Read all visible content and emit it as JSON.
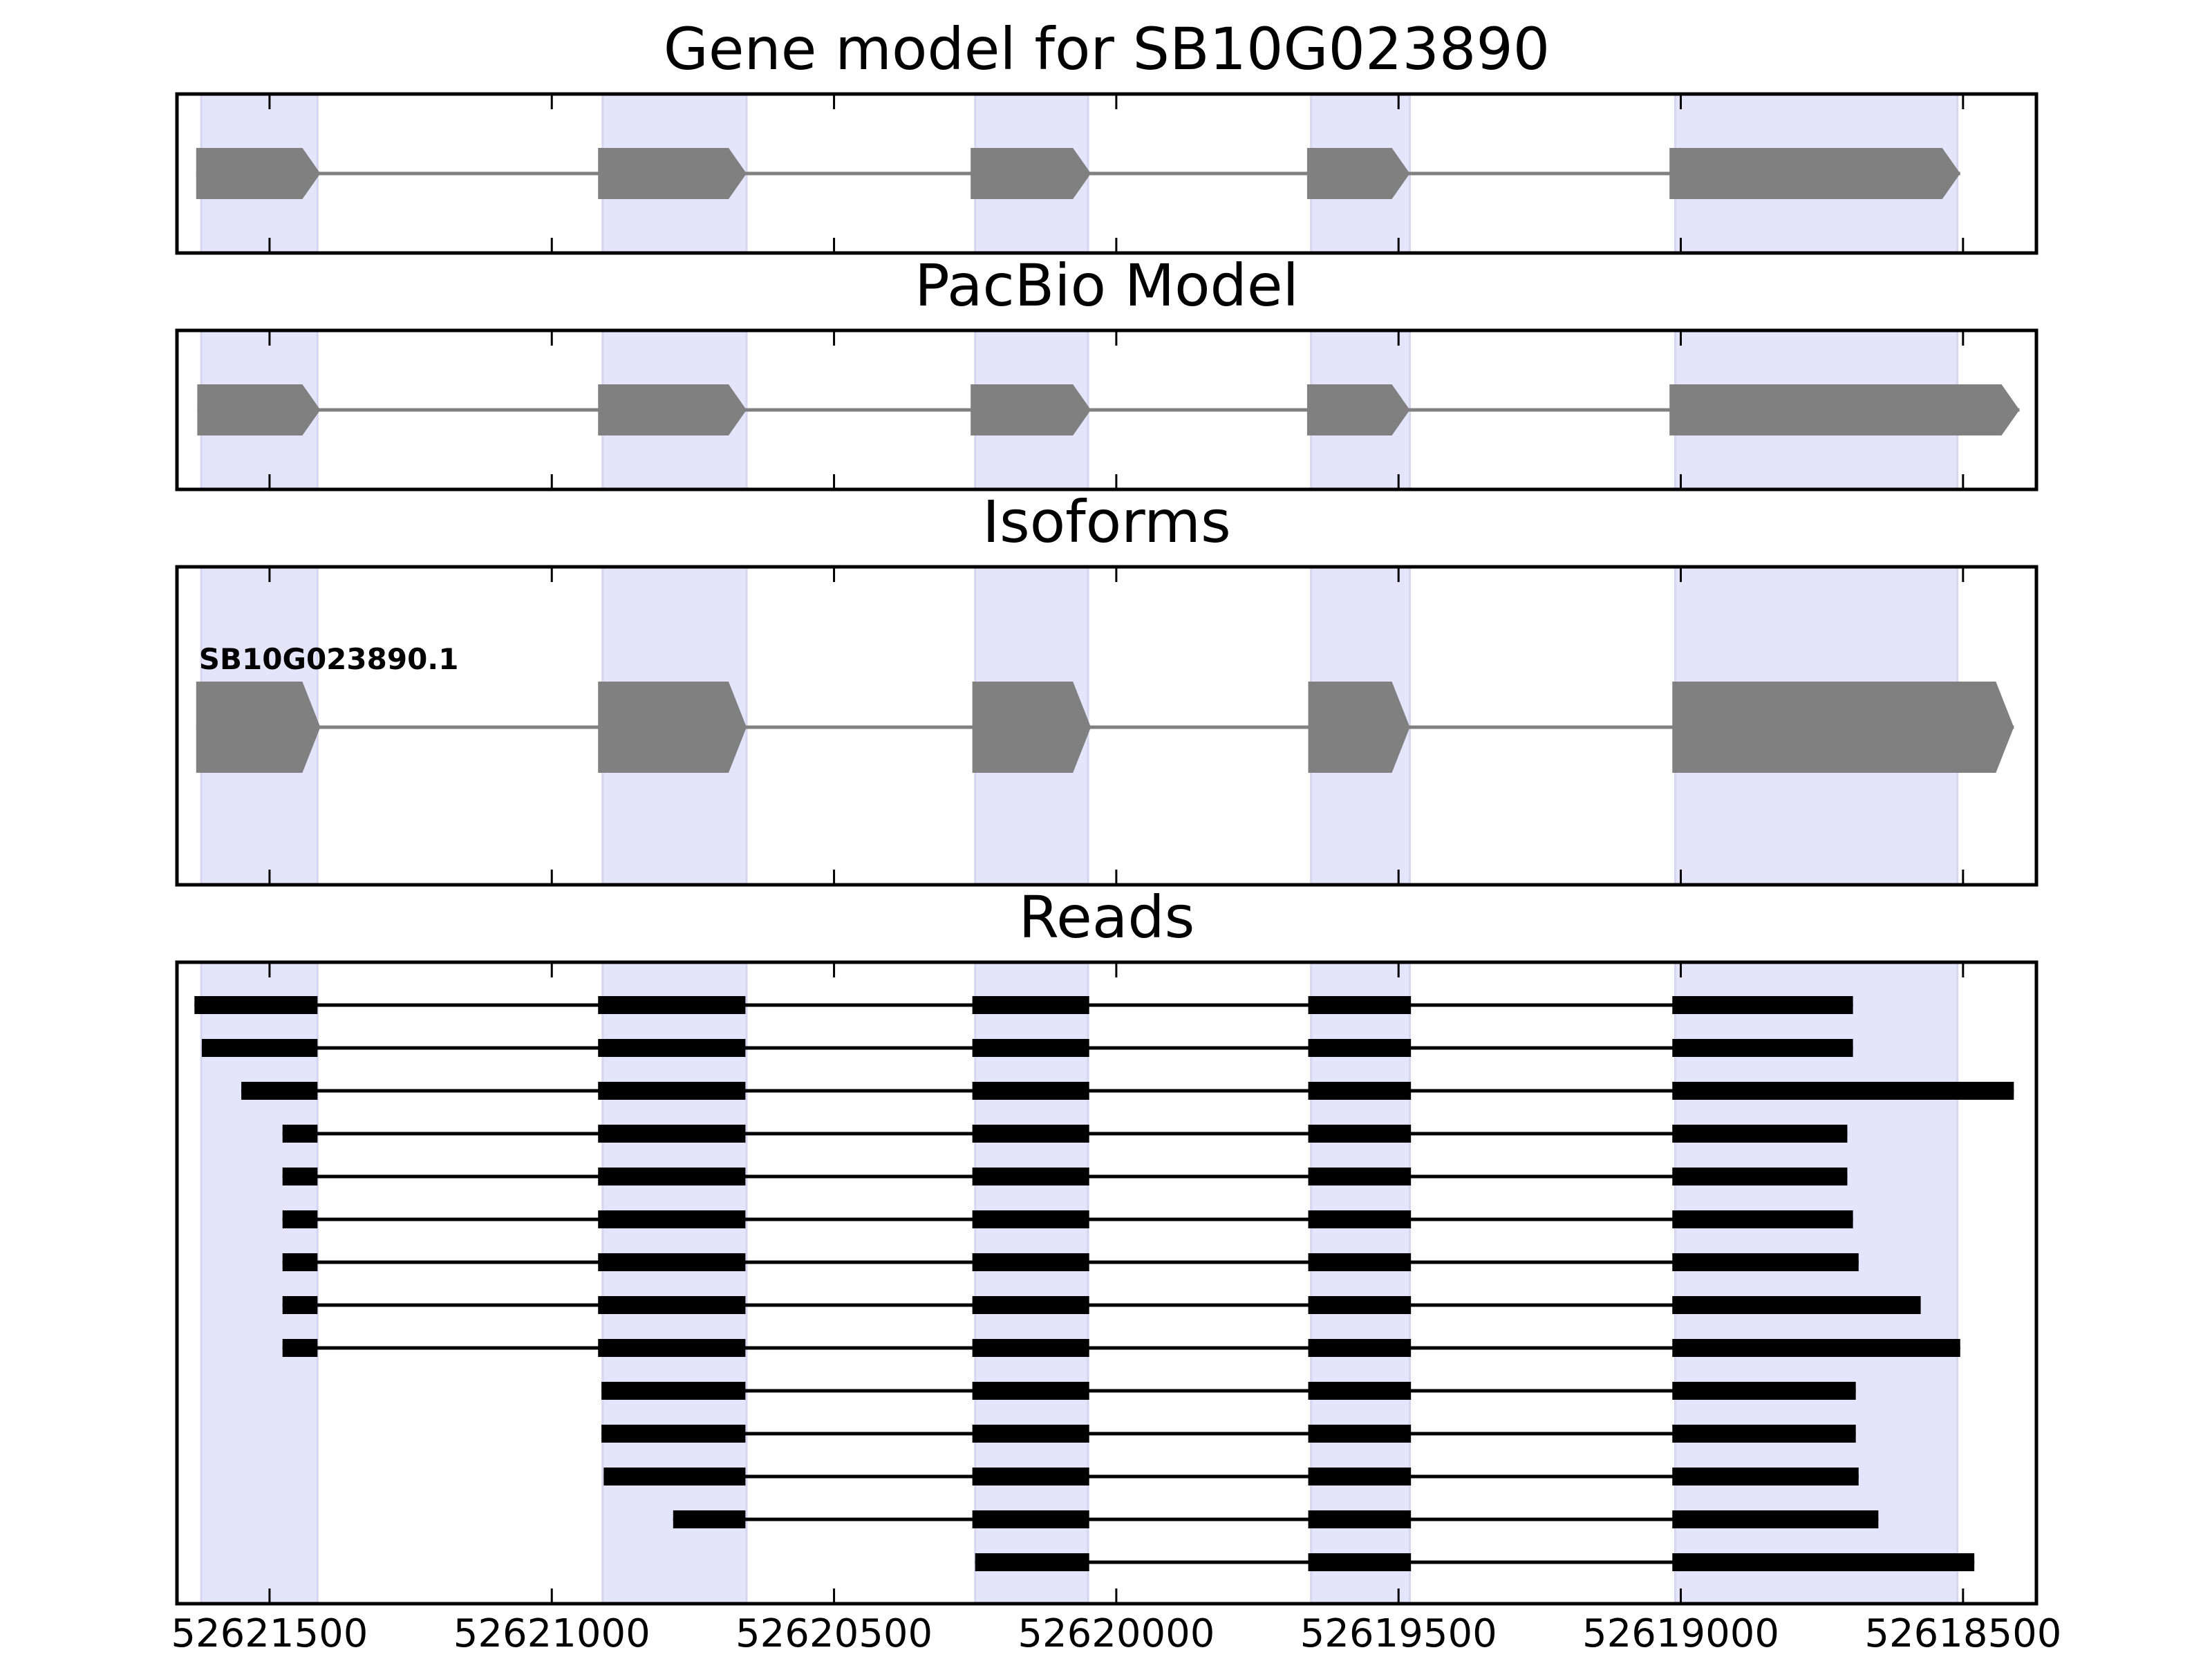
{
  "chart_data": {
    "type": "gene-structure",
    "x_axis": {
      "range": [
        52621664,
        52618370
      ],
      "ticks": [
        52621500,
        52621000,
        52620500,
        52620000,
        52619500,
        52619000,
        52618500
      ],
      "tick_labels": [
        "52621500",
        "52621000",
        "52620500",
        "52620000",
        "52619500",
        "52619000",
        "52618500"
      ]
    },
    "exon_regions": [
      [
        52621621,
        52621415
      ],
      [
        52620910,
        52620655
      ],
      [
        52620250,
        52620050
      ],
      [
        52619655,
        52619480
      ],
      [
        52619010,
        52618510
      ]
    ],
    "colors": {
      "exon_shading": "#e4e4fb",
      "model_feature": "#808080",
      "read_feature": "#000000",
      "frame": "#000000"
    },
    "panels": [
      {
        "title": "Gene model for SB10G023890",
        "features": [
          {
            "exons": [
              [
                52621630,
                52621410
              ],
              [
                52620918,
                52620655
              ],
              [
                52620258,
                52620045
              ],
              [
                52619662,
                52619480
              ],
              [
                52619020,
                52618505
              ]
            ],
            "strand": "-"
          }
        ]
      },
      {
        "title": "PacBio Model",
        "features": [
          {
            "exons": [
              [
                52621628,
                52621410
              ],
              [
                52620918,
                52620655
              ],
              [
                52620258,
                52620045
              ],
              [
                52619662,
                52619480
              ],
              [
                52619020,
                52618400
              ]
            ],
            "strand": "-"
          }
        ]
      },
      {
        "title": "Isoforms",
        "features": [
          {
            "label": "SB10G023890.1",
            "exons": [
              [
                52621630,
                52621410
              ],
              [
                52620918,
                52620655
              ],
              [
                52620255,
                52620045
              ],
              [
                52619660,
                52619480
              ],
              [
                52619015,
                52618410
              ]
            ],
            "strand": "-"
          }
        ]
      },
      {
        "title": "Reads",
        "features": [
          {
            "exons": [
              [
                52621633,
                52621415
              ],
              [
                52620918,
                52620657
              ],
              [
                52620255,
                52620048
              ],
              [
                52619660,
                52619478
              ],
              [
                52619015,
                52618695
              ]
            ]
          },
          {
            "exons": [
              [
                52621620,
                52621415
              ],
              [
                52620918,
                52620657
              ],
              [
                52620255,
                52620048
              ],
              [
                52619660,
                52619478
              ],
              [
                52619015,
                52618695
              ]
            ]
          },
          {
            "exons": [
              [
                52621550,
                52621415
              ],
              [
                52620918,
                52620657
              ],
              [
                52620255,
                52620048
              ],
              [
                52619660,
                52619478
              ],
              [
                52619015,
                52618410
              ]
            ]
          },
          {
            "exons": [
              [
                52621477,
                52621415
              ],
              [
                52620918,
                52620657
              ],
              [
                52620255,
                52620048
              ],
              [
                52619660,
                52619478
              ],
              [
                52619015,
                52618705
              ]
            ]
          },
          {
            "exons": [
              [
                52621477,
                52621415
              ],
              [
                52620918,
                52620657
              ],
              [
                52620255,
                52620048
              ],
              [
                52619660,
                52619478
              ],
              [
                52619015,
                52618705
              ]
            ]
          },
          {
            "exons": [
              [
                52621477,
                52621415
              ],
              [
                52620918,
                52620657
              ],
              [
                52620255,
                52620048
              ],
              [
                52619660,
                52619478
              ],
              [
                52619015,
                52618695
              ]
            ]
          },
          {
            "exons": [
              [
                52621477,
                52621415
              ],
              [
                52620918,
                52620657
              ],
              [
                52620255,
                52620048
              ],
              [
                52619660,
                52619478
              ],
              [
                52619015,
                52618685
              ]
            ]
          },
          {
            "exons": [
              [
                52621477,
                52621415
              ],
              [
                52620918,
                52620657
              ],
              [
                52620255,
                52620048
              ],
              [
                52619660,
                52619478
              ],
              [
                52619015,
                52618575
              ]
            ]
          },
          {
            "exons": [
              [
                52621477,
                52621415
              ],
              [
                52620918,
                52620657
              ],
              [
                52620255,
                52620048
              ],
              [
                52619660,
                52619478
              ],
              [
                52619015,
                52618505
              ]
            ]
          },
          {
            "exons": [
              [
                52620912,
                52620657
              ],
              [
                52620255,
                52620048
              ],
              [
                52619660,
                52619478
              ],
              [
                52619015,
                52618690
              ]
            ]
          },
          {
            "exons": [
              [
                52620912,
                52620657
              ],
              [
                52620255,
                52620048
              ],
              [
                52619660,
                52619478
              ],
              [
                52619015,
                52618690
              ]
            ]
          },
          {
            "exons": [
              [
                52620908,
                52620657
              ],
              [
                52620255,
                52620048
              ],
              [
                52619660,
                52619478
              ],
              [
                52619015,
                52618685
              ]
            ]
          },
          {
            "exons": [
              [
                52620785,
                52620657
              ],
              [
                52620255,
                52620048
              ],
              [
                52619660,
                52619478
              ],
              [
                52619015,
                52618650
              ]
            ]
          },
          {
            "exons": [
              [
                52620250,
                52620048
              ],
              [
                52619660,
                52619478
              ],
              [
                52619015,
                52618480
              ]
            ]
          }
        ]
      }
    ]
  }
}
